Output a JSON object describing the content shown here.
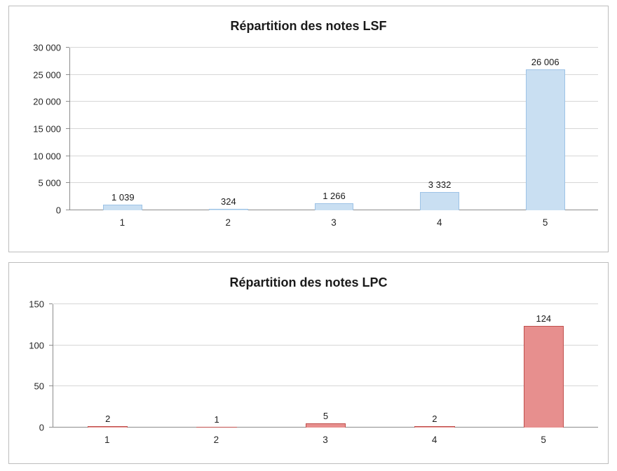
{
  "chart_data": [
    {
      "type": "bar",
      "title": "Répartition des notes LSF",
      "categories": [
        "1",
        "2",
        "3",
        "4",
        "5"
      ],
      "values": [
        1039,
        324,
        1266,
        3332,
        26006
      ],
      "value_labels": [
        "1 039",
        "324",
        "1 266",
        "3 332",
        "26 006"
      ],
      "xlabel": "",
      "ylabel": "",
      "ylim": [
        0,
        30000
      ],
      "ytick_step": 5000,
      "ytick_labels": [
        "0",
        "5 000",
        "10 000",
        "15 000",
        "20 000",
        "25 000",
        "30 000"
      ],
      "grid": true,
      "legend": "none",
      "bar_fill": "#c9dff2",
      "bar_border": "#9dc3e6"
    },
    {
      "type": "bar",
      "title": "Répartition des notes LPC",
      "categories": [
        "1",
        "2",
        "3",
        "4",
        "5"
      ],
      "values": [
        2,
        1,
        5,
        2,
        124
      ],
      "value_labels": [
        "2",
        "1",
        "5",
        "2",
        "124"
      ],
      "xlabel": "",
      "ylabel": "",
      "ylim": [
        0,
        150
      ],
      "ytick_step": 50,
      "ytick_labels": [
        "0",
        "50",
        "100",
        "150"
      ],
      "grid": true,
      "legend": "none",
      "bar_fill": "#e78f8e",
      "bar_border": "#c0504d"
    }
  ]
}
